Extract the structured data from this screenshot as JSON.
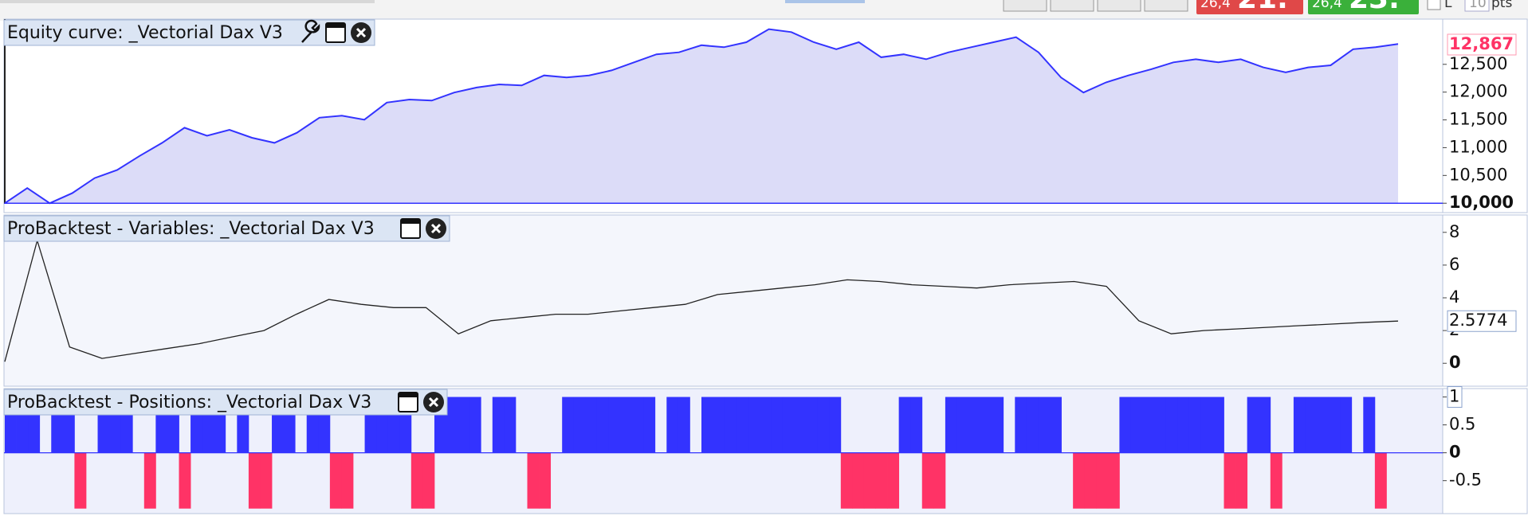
{
  "top_bar": {
    "sell_prefix": "26,4",
    "sell_big": "21.",
    "buy_prefix": "26,4",
    "buy_big": "23.",
    "checkbox_label": "L",
    "size_value": "10",
    "size_unit": "pts"
  },
  "chart_data": [
    {
      "type": "area",
      "title": "Equity curve: _Vectorial Dax V3",
      "color": "#3333ff",
      "fill": "#dcdcf8",
      "values": [
        10000,
        10272,
        10000,
        10181,
        10453,
        10598,
        10851,
        11087,
        11359,
        11214,
        11322,
        11178,
        11087,
        11268,
        11540,
        11576,
        11504,
        11812,
        11866,
        11848,
        11993,
        12083,
        12138,
        12120,
        12301,
        12264,
        12301,
        12391,
        12536,
        12681,
        12717,
        12844,
        12808,
        12899,
        13134,
        13080,
        12899,
        12772,
        12899,
        12627,
        12681,
        12591,
        12717,
        12808,
        12899,
        12989,
        12717,
        12264,
        11993,
        12174,
        12301,
        12409,
        12536,
        12591,
        12536,
        12591,
        12446,
        12355,
        12446,
        12482,
        12772,
        12808,
        12867
      ],
      "ylim": [
        9831,
        13314
      ],
      "yticks": [
        {
          "value": 10000,
          "label": "10,000"
        },
        {
          "value": 10500,
          "label": "10,500"
        },
        {
          "value": 11000,
          "label": "11,000"
        },
        {
          "value": 11500,
          "label": "11,500"
        },
        {
          "value": 12000,
          "label": "12,000"
        },
        {
          "value": 12500,
          "label": "12,500"
        }
      ],
      "last": {
        "value": 12867,
        "label": "12,867"
      }
    },
    {
      "type": "line",
      "title": "ProBacktest - Variables: _Vectorial Dax V3",
      "color": "#222222",
      "values": [
        0.1,
        7.5,
        1.0,
        0.3,
        0.6,
        0.9,
        1.2,
        1.6,
        2.0,
        3.0,
        3.9,
        3.6,
        3.4,
        3.4,
        1.8,
        2.6,
        2.8,
        3.0,
        3.0,
        3.2,
        3.4,
        3.6,
        4.2,
        4.4,
        4.6,
        4.8,
        5.1,
        5.0,
        4.8,
        4.7,
        4.6,
        4.8,
        4.9,
        5.0,
        4.7,
        2.6,
        1.8,
        2.0,
        2.1,
        2.2,
        2.3,
        2.4,
        2.5,
        2.5774
      ],
      "ylim": [
        -1.4,
        9.06
      ],
      "yticks": [
        0,
        2,
        4,
        6,
        8
      ],
      "last": 2.5774
    },
    {
      "type": "bar",
      "title": "ProBacktest - Positions: _Vectorial Dax V3",
      "color": "#3333ff",
      "negative_color": "#ff3366",
      "values": [
        1,
        1,
        1,
        0,
        1,
        1,
        -1,
        0,
        1,
        1,
        1,
        0,
        -1,
        1,
        1,
        -1,
        1,
        1,
        1,
        0,
        1,
        -1,
        -1,
        1,
        1,
        0,
        1,
        1,
        -1,
        -1,
        0,
        1,
        1,
        1,
        1,
        -1,
        -1,
        1,
        1,
        1,
        1,
        0,
        1,
        1,
        0,
        -1,
        -1,
        0,
        1,
        1,
        1,
        1,
        1,
        1,
        1,
        1,
        0,
        1,
        1,
        0,
        1,
        1,
        1,
        1,
        1,
        1,
        1,
        1,
        1,
        1,
        1,
        1,
        -1,
        -1,
        -1,
        -1,
        -1,
        1,
        1,
        -1,
        -1,
        1,
        1,
        1,
        1,
        1,
        0,
        1,
        1,
        1,
        1,
        0,
        -1,
        -1,
        -1,
        -1,
        1,
        1,
        1,
        1,
        1,
        1,
        1,
        1,
        1,
        -1,
        -1,
        1,
        1,
        -1,
        0,
        1,
        1,
        1,
        1,
        1,
        0,
        1,
        -1,
        0
      ],
      "ylim": [
        -1.09,
        1.15
      ],
      "yticks": [
        -0.5,
        0,
        0.5,
        1
      ],
      "last": 1
    }
  ]
}
